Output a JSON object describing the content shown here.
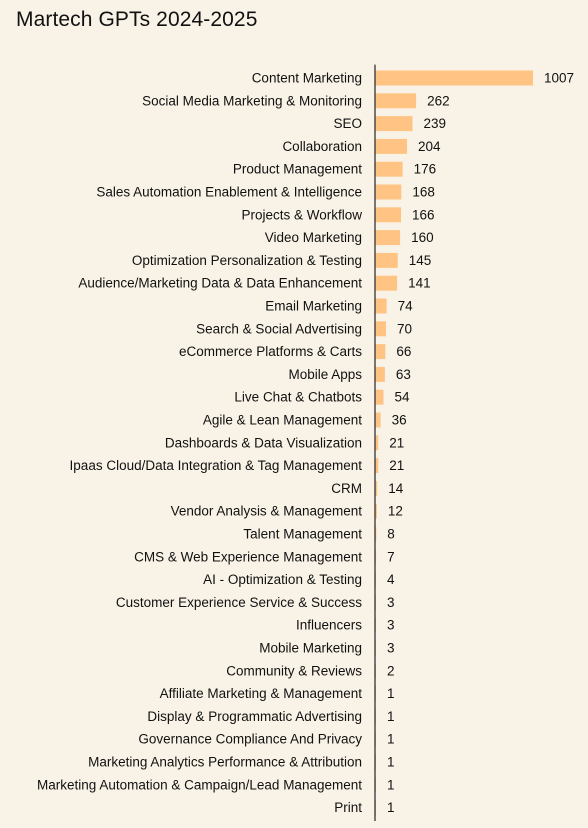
{
  "chart_data": {
    "type": "bar",
    "orientation": "horizontal",
    "title": "Martech GPTs 2024-2025",
    "xlabel": "",
    "ylabel": "",
    "bar_color": "#ffc384",
    "axis_color": "#333333",
    "background": "#f9f3e7",
    "categories": [
      "Content Marketing",
      "Social Media Marketing & Monitoring",
      "SEO",
      "Collaboration",
      "Product Management",
      "Sales Automation Enablement & Intelligence",
      "Projects & Workflow",
      "Video Marketing",
      "Optimization Personalization & Testing",
      "Audience/Marketing Data & Data Enhancement",
      "Email Marketing",
      "Search & Social Advertising",
      "eCommerce Platforms & Carts",
      "Mobile Apps",
      "Live Chat & Chatbots",
      "Agile & Lean Management",
      "Dashboards & Data Visualization",
      "Ipaas Cloud/Data Integration & Tag Management",
      "CRM",
      "Vendor Analysis & Management",
      "Talent Management",
      "CMS & Web Experience Management",
      "AI - Optimization & Testing",
      "Customer Experience Service & Success",
      "Influencers",
      "Mobile Marketing",
      "Community & Reviews",
      "Affiliate Marketing & Management",
      "Display & Programmatic Advertising",
      "Governance Compliance And Privacy",
      "Marketing Analytics Performance & Attribution",
      "Marketing Automation & Campaign/Lead Management",
      "Print"
    ],
    "values": [
      1007,
      262,
      239,
      204,
      176,
      168,
      166,
      160,
      145,
      141,
      74,
      70,
      66,
      63,
      54,
      36,
      21,
      21,
      14,
      12,
      8,
      7,
      4,
      3,
      3,
      3,
      2,
      1,
      1,
      1,
      1,
      1,
      1
    ],
    "xlim": [
      0,
      1007
    ],
    "grid": false,
    "legend": "none"
  }
}
